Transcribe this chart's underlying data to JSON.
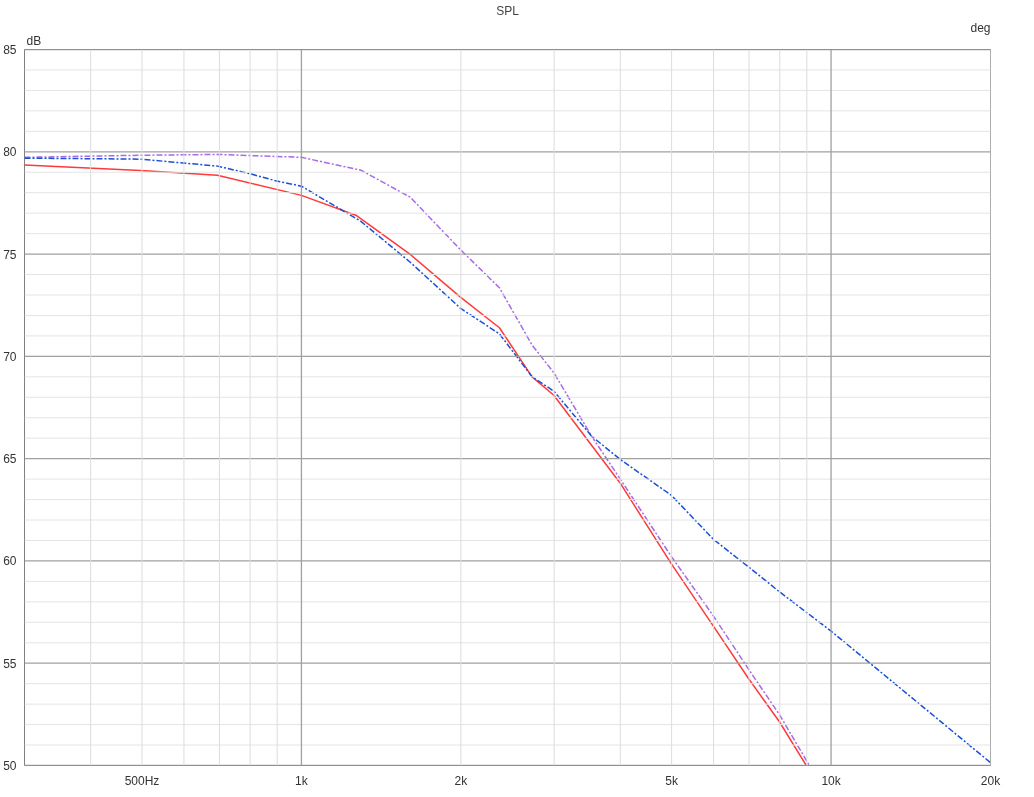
{
  "chart_data": {
    "type": "line",
    "title": "SPL",
    "ylabel": "dB",
    "y2label": "deg",
    "log": "x",
    "grid": true,
    "xlim": [
      300,
      20000
    ],
    "ylim": [
      50,
      85
    ],
    "xticks": [
      {
        "value": 500,
        "label": "500Hz"
      },
      {
        "value": 1000,
        "label": "1k"
      },
      {
        "value": 2000,
        "label": "2k"
      },
      {
        "value": 5000,
        "label": "5k"
      },
      {
        "value": 10000,
        "label": "10k"
      },
      {
        "value": 20000,
        "label": "20k"
      }
    ],
    "yticks": [
      50,
      55,
      60,
      65,
      70,
      75,
      80,
      85
    ],
    "series": [
      {
        "color": "#ff3a3a",
        "line_style": "solid",
        "x": [
          300,
          497,
          694,
          1000,
          1267,
          1605,
          1999,
          2365,
          2726,
          2996,
          3999,
          4999,
          5999,
          6989,
          7983,
          8979
        ],
        "values": [
          79.36,
          79.08,
          78.85,
          77.87,
          76.9,
          74.98,
          72.88,
          71.4,
          69.0,
          68.1,
          63.8,
          59.84,
          56.8,
          54.24,
          52.15,
          50.0
        ]
      },
      {
        "color": "#a86ae6",
        "line_style": "dashed",
        "x": [
          300,
          497,
          694,
          1000,
          1295,
          1605,
          1999,
          2365,
          2726,
          2996,
          3531,
          3999,
          4999,
          5999,
          6989,
          7983,
          9100
        ],
        "values": [
          79.73,
          79.83,
          79.87,
          79.73,
          79.1,
          77.78,
          75.2,
          73.35,
          70.55,
          69.2,
          66.1,
          64.0,
          60.2,
          57.3,
          54.7,
          52.5,
          50.0
        ]
      },
      {
        "color": "#1a4fd6",
        "line_style": "dashed",
        "x": [
          300,
          497,
          694,
          796,
          898,
          1000,
          1295,
          1605,
          1999,
          2365,
          2726,
          2996,
          3531,
          3999,
          4999,
          5999,
          6989,
          7983,
          10000,
          20000
        ],
        "values": [
          79.69,
          79.64,
          79.3,
          78.94,
          78.57,
          78.32,
          76.6,
          74.6,
          72.34,
          71.1,
          69.0,
          68.3,
          66.1,
          64.96,
          63.2,
          61.05,
          59.7,
          58.5,
          56.57,
          50.14
        ]
      }
    ]
  }
}
